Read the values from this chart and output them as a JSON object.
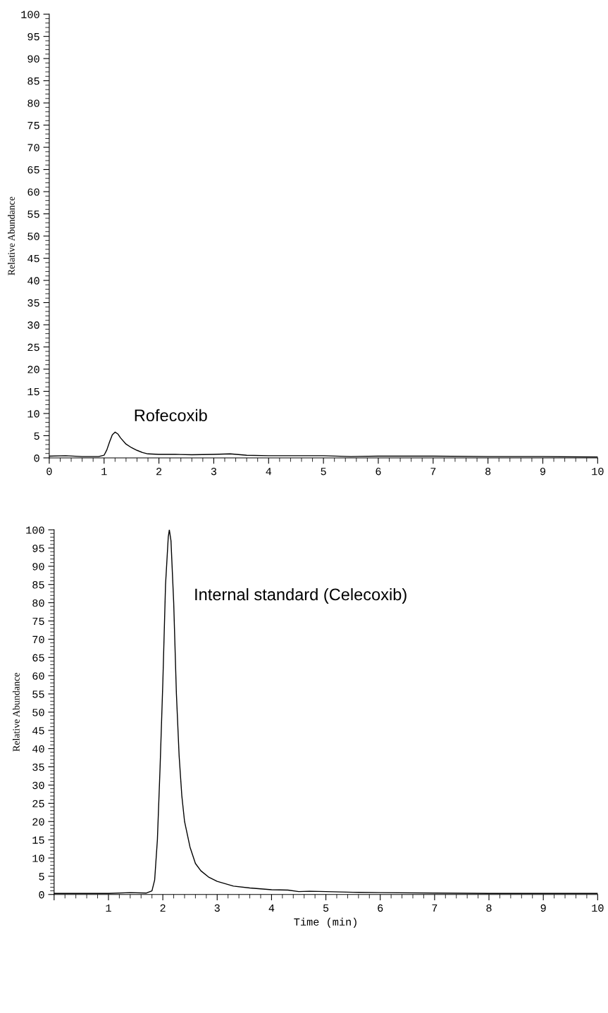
{
  "chart_data": [
    {
      "type": "line",
      "ylabel": "Relative Abundance",
      "xlim": [
        0,
        10
      ],
      "ylim": [
        0,
        100
      ],
      "xticks": [
        0,
        1,
        2,
        3,
        4,
        5,
        6,
        7,
        8,
        9,
        10
      ],
      "yticks": [
        0,
        5,
        10,
        15,
        20,
        25,
        30,
        35,
        40,
        45,
        50,
        55,
        60,
        65,
        70,
        75,
        80,
        85,
        90,
        95,
        100
      ],
      "grid": false,
      "legend": false,
      "marker": "none",
      "line_style": "solid",
      "annotations": [
        "Rofecoxib"
      ],
      "series": [
        {
          "color": "#000000",
          "x": [
            0,
            0.3,
            0.6,
            0.9,
            1.0,
            1.05,
            1.1,
            1.15,
            1.2,
            1.25,
            1.3,
            1.4,
            1.5,
            1.6,
            1.7,
            1.8,
            2.0,
            2.3,
            2.6,
            3.0,
            3.3,
            3.6,
            4.0,
            4.5,
            5.0,
            5.5,
            6.0,
            7.0,
            8.0,
            9.0,
            10.0
          ],
          "values": [
            0.4,
            0.5,
            0.3,
            0.3,
            0.6,
            1.8,
            3.6,
            5.2,
            5.8,
            5.4,
            4.5,
            3.1,
            2.3,
            1.7,
            1.2,
            0.9,
            0.8,
            0.8,
            0.7,
            0.8,
            0.9,
            0.6,
            0.5,
            0.5,
            0.5,
            0.3,
            0.4,
            0.4,
            0.3,
            0.3,
            0.2
          ]
        }
      ]
    },
    {
      "type": "line",
      "xlabel": "Time (min)",
      "ylabel": "Relative Abundance",
      "xlim": [
        0,
        10
      ],
      "ylim": [
        0,
        100
      ],
      "xticks": [
        {
          "value": 0,
          "label": null
        },
        1,
        2,
        3,
        4,
        5,
        6,
        7,
        8,
        9,
        10
      ],
      "yticks": [
        0,
        5,
        10,
        15,
        20,
        25,
        30,
        35,
        40,
        45,
        50,
        55,
        60,
        65,
        70,
        75,
        80,
        85,
        90,
        95,
        100
      ],
      "grid": false,
      "legend": false,
      "marker": "none",
      "line_style": "solid",
      "annotations": [
        "Internal standard (Celecoxib)"
      ],
      "series": [
        {
          "color": "#000000",
          "x": [
            0,
            0.5,
            1.0,
            1.4,
            1.7,
            1.8,
            1.85,
            1.9,
            1.95,
            2.0,
            2.05,
            2.1,
            2.12,
            2.15,
            2.2,
            2.25,
            2.3,
            2.35,
            2.4,
            2.5,
            2.6,
            2.7,
            2.85,
            3.0,
            3.3,
            3.6,
            4.0,
            4.3,
            4.5,
            4.7,
            5.0,
            5.5,
            6.0,
            7.0,
            8.0,
            9.0,
            10.0
          ],
          "values": [
            0.3,
            0.3,
            0.3,
            0.5,
            0.4,
            1.0,
            4.0,
            15,
            35,
            58,
            85,
            98,
            100,
            97,
            80,
            55,
            38,
            27,
            20,
            13,
            8.5,
            6.5,
            4.7,
            3.6,
            2.3,
            1.8,
            1.3,
            1.2,
            0.8,
            0.9,
            0.8,
            0.6,
            0.5,
            0.4,
            0.3,
            0.3,
            0.3
          ]
        }
      ]
    }
  ]
}
